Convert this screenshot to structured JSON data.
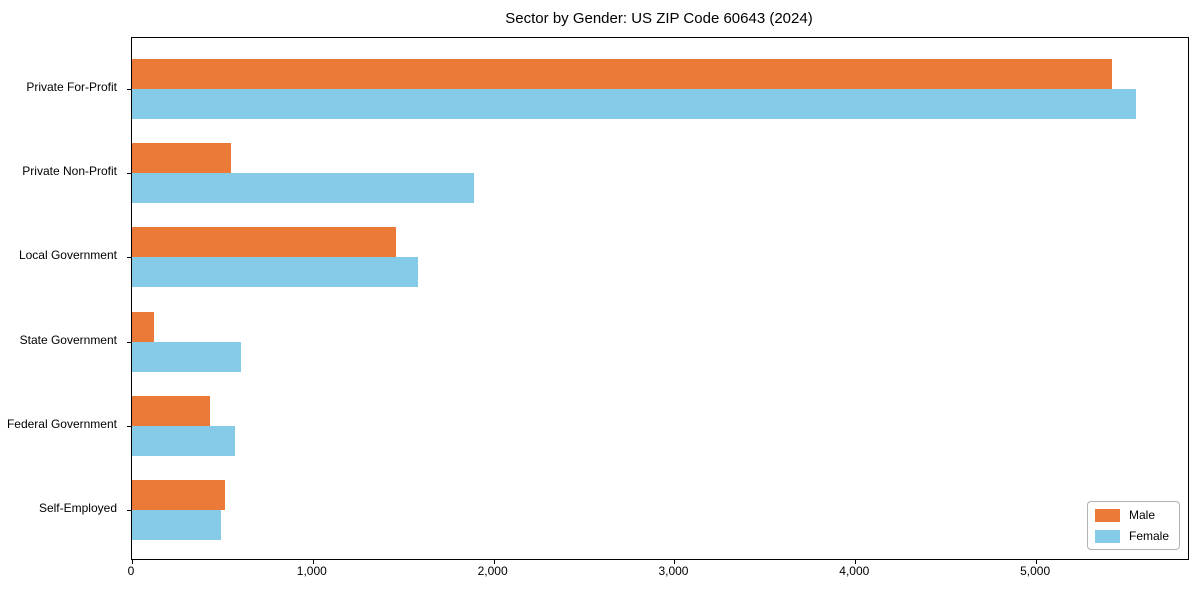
{
  "figure_title": "Sector by Gender: US ZIP Code 60643 (2024)",
  "chart_data": {
    "type": "bar",
    "orientation": "horizontal",
    "title": "Sector by Gender: US ZIP Code 60643 (2024)",
    "categories": [
      "Private For-Profit",
      "Private Non-Profit",
      "Local Government",
      "State Government",
      "Federal Government",
      "Self-Employed"
    ],
    "series": [
      {
        "name": "Male",
        "color": "#EB7A39",
        "values": [
          5420,
          545,
          1460,
          120,
          430,
          515
        ]
      },
      {
        "name": "Female",
        "color": "#85CBE8",
        "values": [
          5555,
          1890,
          1580,
          605,
          570,
          490
        ]
      }
    ],
    "xlabel": "",
    "ylabel": "",
    "xlim": [
      0,
      5840
    ],
    "xticks": {
      "values": [
        0,
        1000,
        2000,
        3000,
        4000,
        5000
      ],
      "labels": [
        "0",
        "1,000",
        "2,000",
        "3,000",
        "4,000",
        "5,000"
      ]
    },
    "legend": {
      "position": "lower right",
      "entries": [
        "Male",
        "Female"
      ]
    },
    "grid": false,
    "background_color": "#ffffff",
    "axis_color": "#000000"
  }
}
